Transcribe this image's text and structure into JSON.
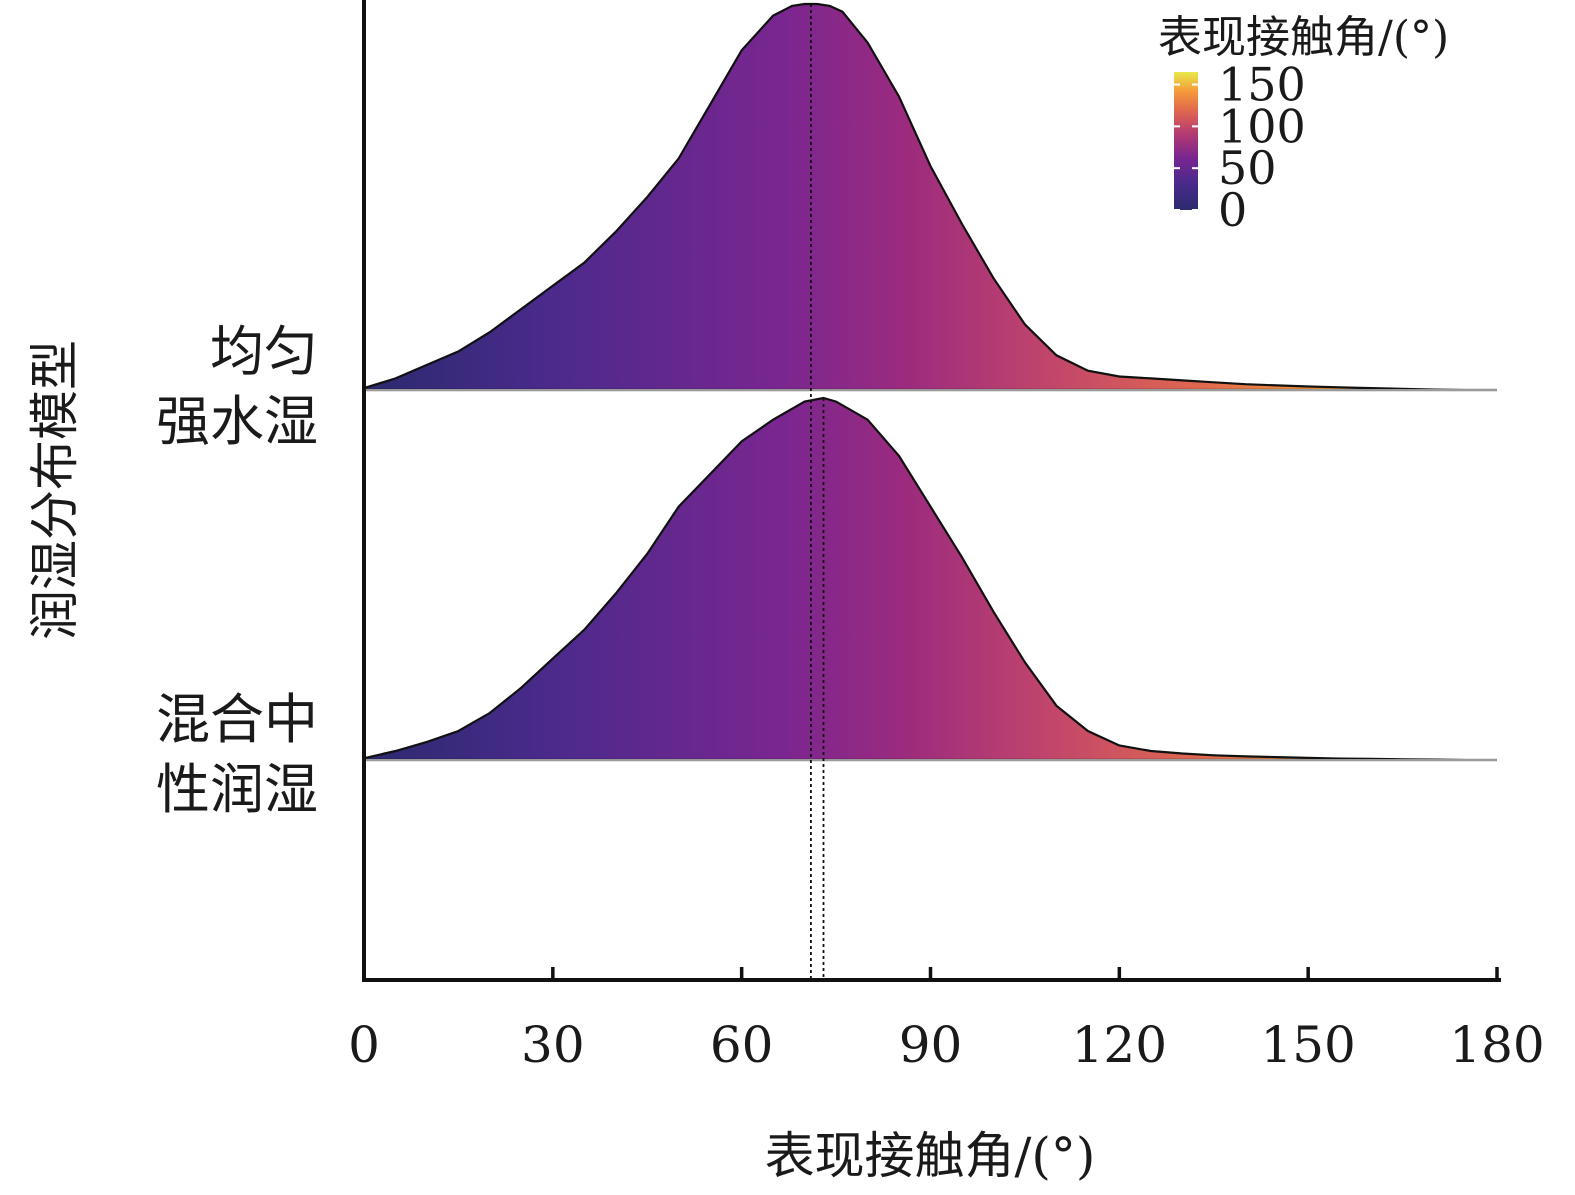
{
  "chart_data": {
    "type": "ridgeline",
    "xlabel": "表现接触角/(°)",
    "ylabel": "润湿分布模型",
    "xlim": [
      0,
      180
    ],
    "xticks": [
      0,
      30,
      60,
      90,
      120,
      150,
      180
    ],
    "legend": {
      "title": "表现接触角/(°)",
      "ticks": [
        0,
        50,
        100,
        150
      ],
      "range": [
        0,
        165
      ],
      "placement": "top-right",
      "colormap": [
        "#2b2a6e",
        "#4b2a8c",
        "#7a2690",
        "#9c2b7e",
        "#c2466a",
        "#e0684f",
        "#f59a3a",
        "#f6d135",
        "#e8e84a"
      ]
    },
    "series": [
      {
        "name_lines": [
          "均匀",
          "强水湿"
        ],
        "peak_x": 71,
        "x": [
          0,
          5,
          10,
          15,
          20,
          25,
          30,
          35,
          40,
          45,
          50,
          55,
          60,
          65,
          68,
          70,
          72,
          74,
          76,
          80,
          85,
          90,
          95,
          100,
          105,
          110,
          115,
          120,
          125,
          130,
          135,
          140,
          145,
          150,
          155,
          160,
          165,
          170,
          175,
          180
        ],
        "density": [
          0.005,
          0.03,
          0.065,
          0.1,
          0.15,
          0.21,
          0.27,
          0.33,
          0.41,
          0.5,
          0.6,
          0.74,
          0.88,
          0.97,
          0.995,
          1.0,
          1.0,
          0.995,
          0.98,
          0.9,
          0.76,
          0.58,
          0.43,
          0.29,
          0.17,
          0.09,
          0.05,
          0.035,
          0.03,
          0.025,
          0.02,
          0.015,
          0.012,
          0.009,
          0.007,
          0.005,
          0.003,
          0.001,
          0,
          0
        ]
      },
      {
        "name_lines": [
          "混合中",
          "性润湿"
        ],
        "peak_x": 73,
        "x": [
          0,
          5,
          10,
          15,
          20,
          25,
          30,
          35,
          40,
          45,
          50,
          55,
          60,
          65,
          70,
          73,
          75,
          80,
          85,
          90,
          95,
          100,
          105,
          110,
          115,
          120,
          125,
          130,
          135,
          140,
          145,
          150,
          155,
          160,
          165,
          170,
          175,
          180
        ],
        "density": [
          0.005,
          0.025,
          0.05,
          0.08,
          0.13,
          0.2,
          0.28,
          0.36,
          0.46,
          0.57,
          0.7,
          0.79,
          0.88,
          0.94,
          0.99,
          1.0,
          0.99,
          0.94,
          0.84,
          0.7,
          0.56,
          0.41,
          0.27,
          0.15,
          0.08,
          0.04,
          0.025,
          0.018,
          0.013,
          0.01,
          0.008,
          0.006,
          0.004,
          0.003,
          0.002,
          0.001,
          0,
          0
        ]
      }
    ]
  }
}
